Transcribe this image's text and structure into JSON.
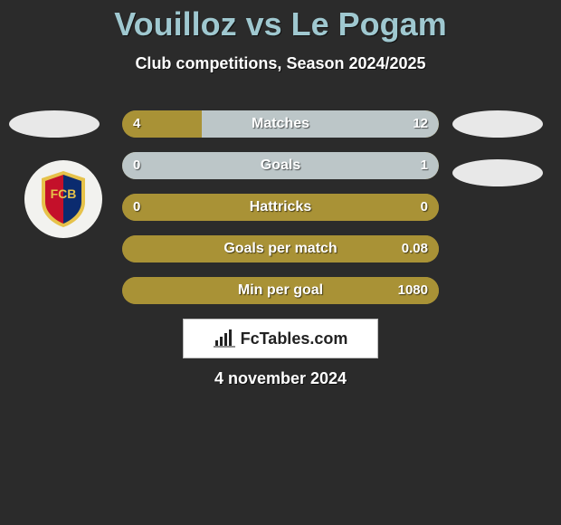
{
  "title": "Vouilloz vs Le Pogam",
  "subtitle": "Club competitions, Season 2024/2025",
  "date": "4 november 2024",
  "brand_text": "FcTables.com",
  "colors": {
    "title": "#9fc8d0",
    "background": "#2b2b2b",
    "bar_left": "#a99236",
    "bar_right": "#bcc6c8",
    "bar_empty": "#a99236"
  },
  "rows": [
    {
      "label": "Matches",
      "left": "4",
      "right": "12",
      "left_w": 25,
      "right_w": 75
    },
    {
      "label": "Goals",
      "left": "0",
      "right": "1",
      "left_w": 0,
      "right_w": 100
    },
    {
      "label": "Hattricks",
      "left": "0",
      "right": "0",
      "left_w": 100,
      "right_w": 0
    },
    {
      "label": "Goals per match",
      "left": "",
      "right": "0.08",
      "left_w": 100,
      "right_w": 0
    },
    {
      "label": "Min per goal",
      "left": "",
      "right": "1080",
      "left_w": 100,
      "right_w": 0
    }
  ],
  "crest": {
    "primary": "#c4102a",
    "secondary": "#0b2b6f",
    "outline": "#e6c24a"
  }
}
